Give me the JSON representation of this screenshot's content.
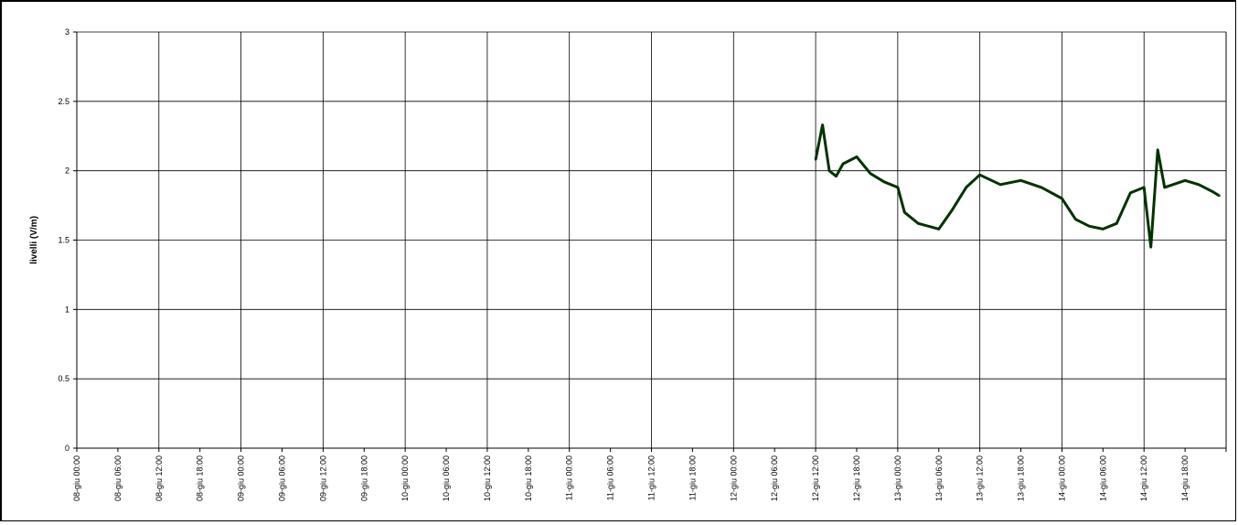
{
  "chart_data": {
    "type": "line",
    "title": "",
    "xlabel": "",
    "ylabel": "livelli (V/m)",
    "ylim": [
      0,
      3
    ],
    "yticks": [
      "0",
      "0.5",
      "1",
      "1.5",
      "2",
      "2.5",
      "3"
    ],
    "grid": true,
    "legend": "none",
    "xticks": [
      "08-giu 00:00",
      "08-giu 06:00",
      "08-giu 12:00",
      "08-giu 18:00",
      "09-giu 00:00",
      "09-giu 06:00",
      "09-giu 12:00",
      "09-giu 18:00",
      "10-giu 00:00",
      "10-giu 06:00",
      "10-giu 12:00",
      "10-giu 18:00",
      "11-giu 00:00",
      "11-giu 06:00",
      "11-giu 12:00",
      "11-giu 18:00",
      "12-giu 00:00",
      "12-giu 06:00",
      "12-giu 12:00",
      "12-giu 18:00",
      "13-giu 00:00",
      "13-giu 06:00",
      "13-giu 12:00",
      "13-giu 18:00",
      "14-giu 00:00",
      "14-giu 06:00",
      "14-giu 12:00",
      "14-giu 18:00"
    ],
    "line_color": "#003300",
    "series": [
      {
        "name": "",
        "x": [
          "12-giu 12:00",
          "12-giu 13:00",
          "12-giu 14:00",
          "12-giu 15:00",
          "12-giu 16:00",
          "12-giu 18:00",
          "12-giu 20:00",
          "12-giu 22:00",
          "13-giu 00:00",
          "13-giu 01:00",
          "13-giu 03:00",
          "13-giu 06:00",
          "13-giu 08:00",
          "13-giu 10:00",
          "13-giu 12:00",
          "13-giu 15:00",
          "13-giu 18:00",
          "13-giu 21:00",
          "14-giu 00:00",
          "14-giu 02:00",
          "14-giu 04:00",
          "14-giu 06:00",
          "14-giu 08:00",
          "14-giu 10:00",
          "14-giu 12:00",
          "14-giu 13:00",
          "14-giu 14:00",
          "14-giu 15:00",
          "14-giu 18:00",
          "14-giu 20:00",
          "14-giu 22:00",
          "14-giu 23:00"
        ],
        "y": [
          2.08,
          2.33,
          2.0,
          1.96,
          2.05,
          2.1,
          1.98,
          1.92,
          1.88,
          1.7,
          1.62,
          1.58,
          1.72,
          1.88,
          1.97,
          1.9,
          1.93,
          1.88,
          1.8,
          1.65,
          1.6,
          1.58,
          1.62,
          1.84,
          1.88,
          1.45,
          2.15,
          1.88,
          1.93,
          1.9,
          1.85,
          1.82
        ]
      }
    ]
  }
}
